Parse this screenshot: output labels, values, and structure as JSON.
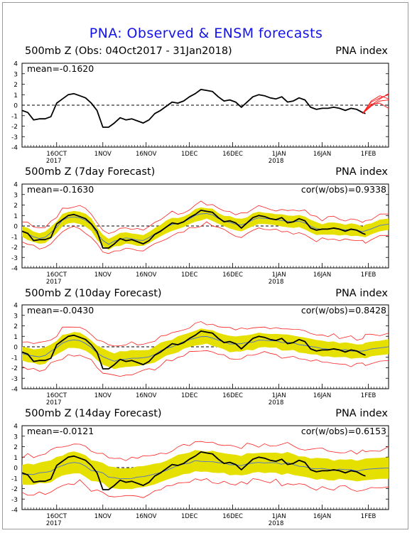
{
  "title": "PNA: Observed & ENSM forecasts",
  "chart_data": [
    {
      "type": "line",
      "title": "500mb Z (Obs: 04Oct2017 - 31Jan2018)",
      "index_label": "PNA index",
      "mean_label": "mean=-0.1620",
      "cor_label": "",
      "ylim": [
        -4,
        4
      ],
      "yticks": [
        "4",
        "3",
        "2",
        "1",
        "0",
        "-1",
        "-2",
        "-3",
        "-4"
      ],
      "xticks": [
        {
          "day": 12,
          "label": "16OCT",
          "sub": "2017"
        },
        {
          "day": 28,
          "label": "1NOV",
          "sub": ""
        },
        {
          "day": 43,
          "label": "16NOV",
          "sub": ""
        },
        {
          "day": 58,
          "label": "1DEC",
          "sub": ""
        },
        {
          "day": 73,
          "label": "16DEC",
          "sub": ""
        },
        {
          "day": 89,
          "label": "1JAN",
          "sub": "2018"
        },
        {
          "day": 104,
          "label": "16JAN",
          "sub": ""
        },
        {
          "day": 120,
          "label": "1FEB",
          "sub": ""
        }
      ],
      "xrange_days": [
        0,
        127
      ],
      "observed_color": "#000000",
      "ensemble_color": "#ff2020",
      "band_color": "#e6e000",
      "series": [
        {
          "role": "observed",
          "x": [
            0,
            2,
            4,
            6,
            8,
            10,
            12,
            14,
            16,
            18,
            20,
            22,
            24,
            26,
            28,
            30,
            32,
            34,
            36,
            38,
            40,
            42,
            44,
            46,
            48,
            50,
            52,
            54,
            56,
            58,
            60,
            62,
            64,
            66,
            68,
            70,
            72,
            74,
            76,
            78,
            80,
            82,
            84,
            86,
            88,
            90,
            92,
            94,
            96,
            98,
            100,
            102,
            104,
            106,
            108,
            110,
            112,
            114,
            116,
            118,
            119
          ],
          "values": [
            -0.5,
            -0.7,
            -1.4,
            -1.3,
            -1.3,
            -1.1,
            0.2,
            0.6,
            1.0,
            1.1,
            0.9,
            0.7,
            0.2,
            -0.5,
            -2.1,
            -2.1,
            -1.7,
            -1.2,
            -1.4,
            -1.3,
            -1.5,
            -1.7,
            -1.4,
            -0.8,
            -0.5,
            -0.1,
            0.3,
            0.2,
            0.4,
            0.8,
            1.1,
            1.5,
            1.4,
            1.3,
            0.8,
            0.4,
            0.5,
            0.3,
            -0.2,
            0.3,
            0.8,
            1.0,
            0.9,
            0.7,
            0.6,
            0.8,
            0.3,
            0.4,
            0.7,
            0.5,
            -0.2,
            -0.4,
            -0.3,
            -0.3,
            -0.2,
            -0.3,
            -0.5,
            -0.3,
            -0.4,
            -0.7,
            -0.8
          ]
        },
        {
          "role": "forecast-ensemble",
          "members": [
            {
              "x": [
                118,
                121,
                124,
                127
              ],
              "values": [
                -0.8,
                0.3,
                0.7,
                1.0
              ]
            },
            {
              "x": [
                118,
                121,
                124,
                127
              ],
              "values": [
                -0.8,
                -0.1,
                0.4,
                0.5
              ]
            },
            {
              "x": [
                118,
                121,
                124,
                127
              ],
              "values": [
                -0.8,
                0.1,
                0.2,
                -0.3
              ]
            },
            {
              "x": [
                118,
                121,
                124,
                127
              ],
              "values": [
                -0.8,
                0.4,
                0.9,
                0.6
              ]
            },
            {
              "x": [
                118,
                121,
                124,
                127
              ],
              "values": [
                -0.8,
                0.0,
                0.6,
                1.1
              ]
            }
          ]
        }
      ]
    },
    {
      "type": "line",
      "title": "500mb Z (7day Forecast)",
      "index_label": "PNA index",
      "mean_label": "mean=-0.1630",
      "cor_label": "cor(w/obs)=0.9338",
      "ylim": [
        -4,
        4
      ],
      "series_note": "observed (black), ensemble mean (blue), spread (yellow), extremes (red)"
    },
    {
      "type": "line",
      "title": "500mb Z (10day Forecast)",
      "index_label": "PNA index",
      "mean_label": "mean=-0.0430",
      "cor_label": "cor(w/obs)=0.8428",
      "ylim": [
        -4,
        4
      ]
    },
    {
      "type": "line",
      "title": "500mb Z (14day Forecast)",
      "index_label": "PNA index",
      "mean_label": "mean=-0.0121",
      "cor_label": "cor(w/obs)=0.6153",
      "ylim": [
        -4,
        4
      ]
    }
  ]
}
